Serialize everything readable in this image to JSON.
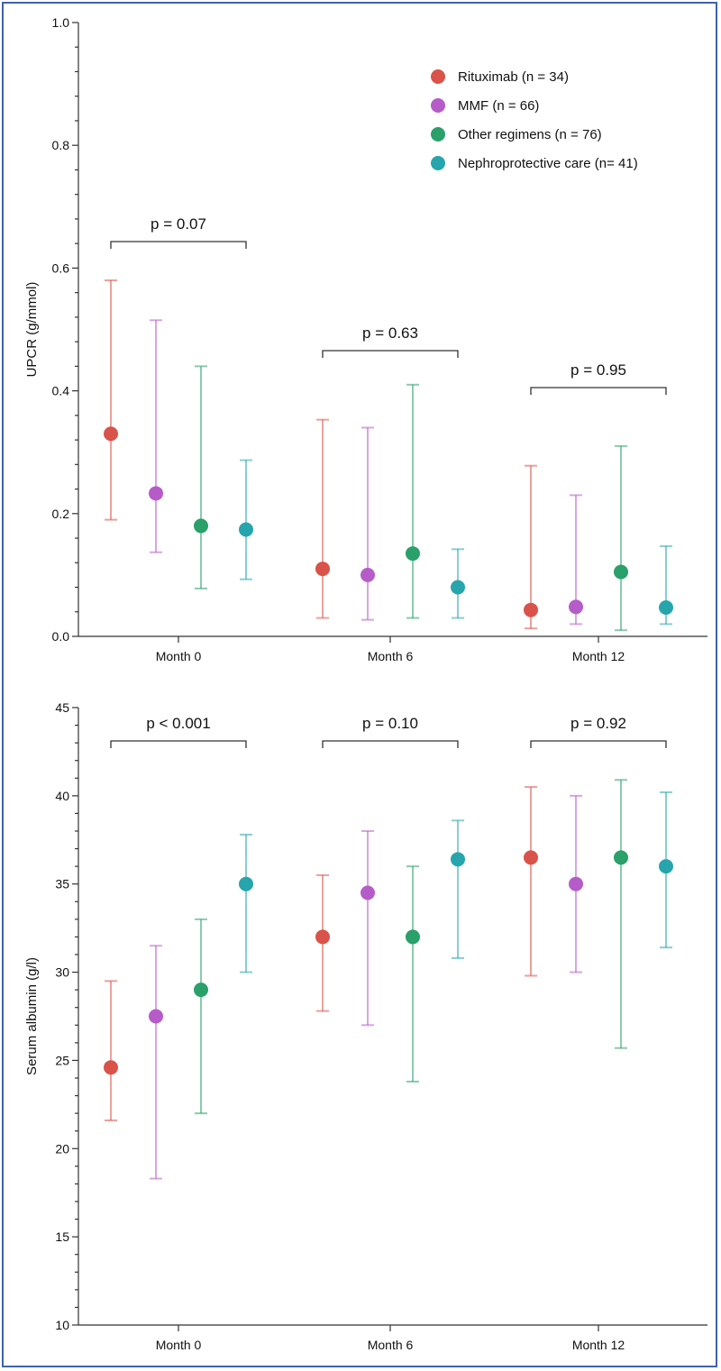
{
  "colors": {
    "Rituximab (n = 34)": "#d9534a",
    "MMF (n = 66)": "#b65cc9",
    "Other regimens (n = 76)": "#2aa06a",
    "Nephroprotective care (n= 41)": "#27a5ad",
    "frame": "#3f63a8"
  },
  "legend": [
    "Rituximab (n = 34)",
    "MMF (n = 66)",
    "Other regimens (n = 76)",
    "Nephroprotective care (n= 41)"
  ],
  "chart_data": [
    {
      "type": "scatter",
      "ylabel": "UPCR  (g/mmol)",
      "categories": [
        "Month 0",
        "Month 6",
        "Month 12"
      ],
      "ylim": [
        0.0,
        1.0
      ],
      "yticks": [
        "0.0",
        "0.2",
        "0.4",
        "0.6",
        "0.8",
        "1.0"
      ],
      "legend_position": "top-right",
      "p_values": [
        "p = 0.07",
        "p = 0.63",
        "p = 0.95"
      ],
      "series": [
        {
          "name": "Rituximab (n = 34)",
          "values": [
            0.33,
            0.11,
            0.043
          ],
          "lower": [
            0.19,
            0.03,
            0.013
          ],
          "upper": [
            0.58,
            0.353,
            0.278
          ]
        },
        {
          "name": "MMF (n = 66)",
          "values": [
            0.233,
            0.1,
            0.048
          ],
          "lower": [
            0.137,
            0.027,
            0.02
          ],
          "upper": [
            0.515,
            0.34,
            0.23
          ]
        },
        {
          "name": "Other regimens (n = 76)",
          "values": [
            0.18,
            0.135,
            0.105
          ],
          "lower": [
            0.078,
            0.03,
            0.01
          ],
          "upper": [
            0.44,
            0.41,
            0.31
          ]
        },
        {
          "name": "Nephroprotective care (n= 41)",
          "values": [
            0.174,
            0.08,
            0.047
          ],
          "lower": [
            0.093,
            0.03,
            0.02
          ],
          "upper": [
            0.287,
            0.142,
            0.147
          ]
        }
      ]
    },
    {
      "type": "scatter",
      "ylabel": "Serum albumin (g/l)",
      "categories": [
        "Month 0",
        "Month 6",
        "Month 12"
      ],
      "ylim": [
        10,
        45
      ],
      "yticks": [
        "10",
        "15",
        "20",
        "25",
        "30",
        "35",
        "40",
        "45"
      ],
      "p_values": [
        "p < 0.001",
        "p = 0.10",
        "p = 0.92"
      ],
      "series": [
        {
          "name": "Rituximab (n = 34)",
          "values": [
            24.6,
            32.0,
            36.5
          ],
          "lower": [
            21.6,
            27.8,
            29.8
          ],
          "upper": [
            29.5,
            35.5,
            40.5
          ]
        },
        {
          "name": "MMF (n = 66)",
          "values": [
            27.5,
            34.5,
            35.0
          ],
          "lower": [
            18.3,
            27.0,
            30.0
          ],
          "upper": [
            31.5,
            38.0,
            40.0
          ]
        },
        {
          "name": "Other regimens (n = 76)",
          "values": [
            29.0,
            32.0,
            36.5
          ],
          "lower": [
            22.0,
            23.8,
            25.7
          ],
          "upper": [
            33.0,
            36.0,
            40.9
          ]
        },
        {
          "name": "Nephroprotective care (n= 41)",
          "values": [
            35.0,
            36.4,
            36.0
          ],
          "lower": [
            30.0,
            30.8,
            31.4
          ],
          "upper": [
            37.8,
            38.6,
            40.2
          ]
        }
      ]
    }
  ]
}
